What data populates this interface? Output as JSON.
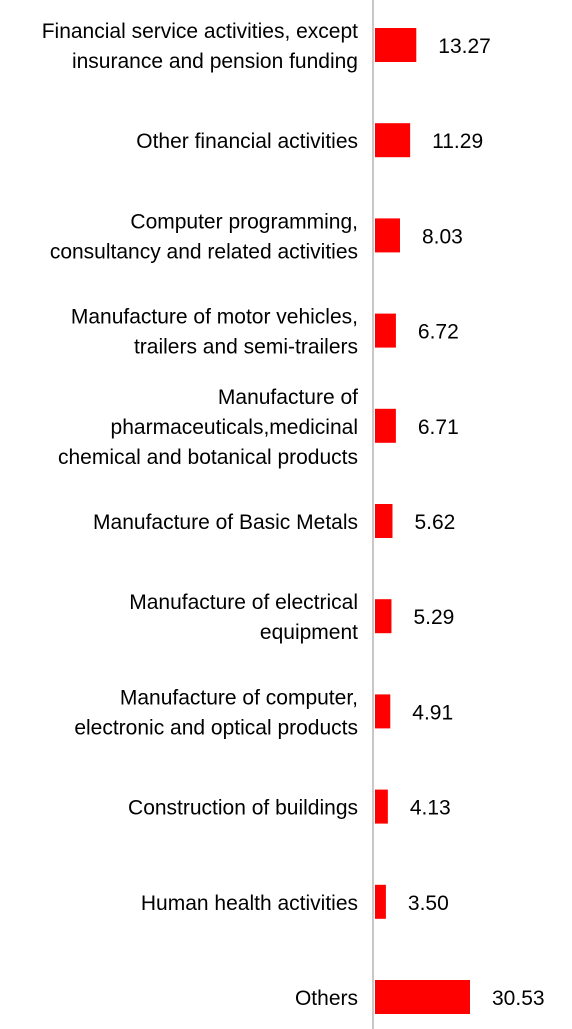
{
  "chart_data": {
    "type": "bar",
    "orientation": "horizontal",
    "categories": [
      [
        "Financial service activities, except",
        "insurance and pension funding"
      ],
      [
        "Other financial activities"
      ],
      [
        "Computer programming,",
        "consultancy and related activities"
      ],
      [
        "Manufacture of motor vehicles,",
        "trailers and semi-trailers"
      ],
      [
        "Manufacture of",
        "pharmaceuticals,medicinal",
        "chemical and botanical products"
      ],
      [
        "Manufacture of Basic Metals"
      ],
      [
        "Manufacture of electrical",
        "equipment"
      ],
      [
        "Manufacture of computer,",
        "electronic and optical products"
      ],
      [
        "Construction of buildings"
      ],
      [
        "Human health activities"
      ],
      [
        "Others"
      ]
    ],
    "values": [
      13.27,
      11.29,
      8.03,
      6.72,
      6.71,
      5.62,
      5.29,
      4.91,
      4.13,
      3.5,
      30.53
    ],
    "value_labels": [
      "13.27",
      "11.29",
      "8.03",
      "6.72",
      "6.71",
      "5.62",
      "5.29",
      "4.91",
      "4.13",
      "3.50",
      "30.53"
    ],
    "title": "",
    "xlabel": "",
    "ylabel": "",
    "grid": false,
    "legend": "none",
    "bar_color": "#ff0000",
    "axis_color": "#c8c8c8"
  }
}
